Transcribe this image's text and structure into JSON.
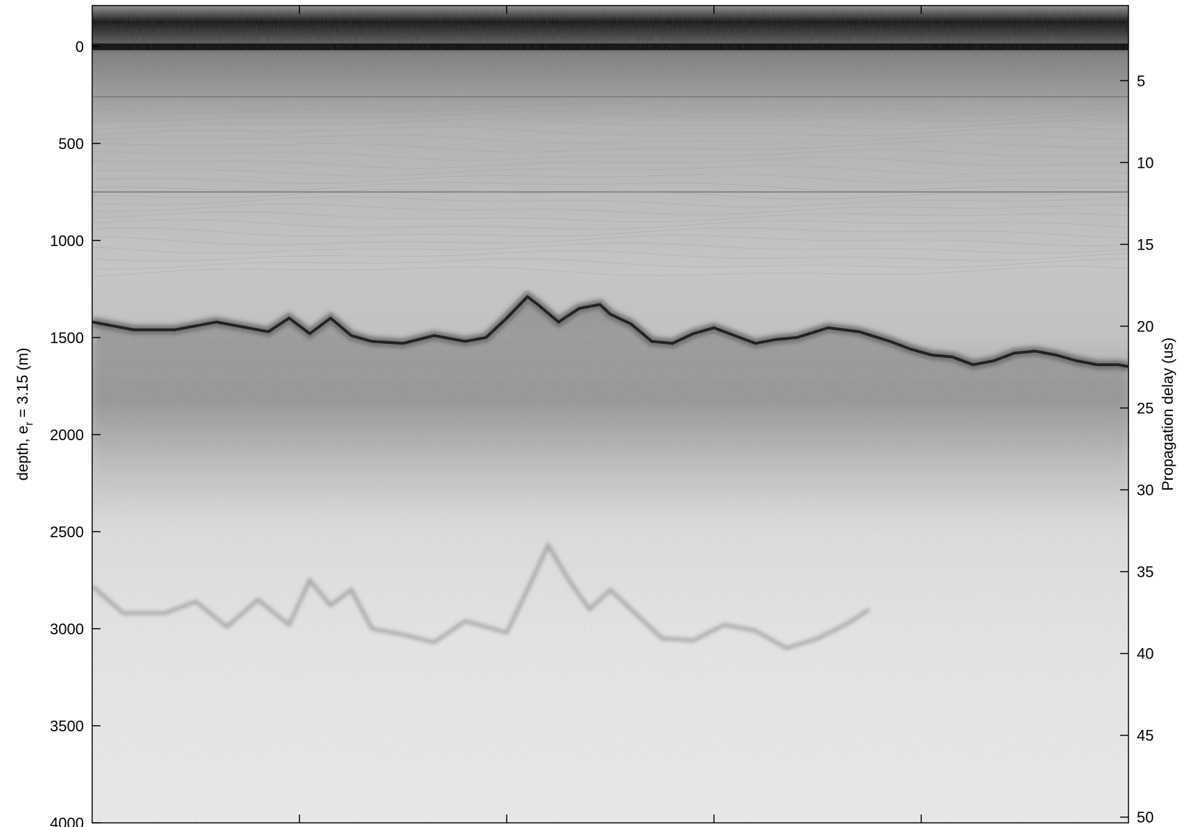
{
  "chart_data": {
    "type": "heatmap",
    "title": "",
    "colormap": "grayscale (dark = strong echo)",
    "left_axis": {
      "label_main": "depth, e",
      "label_sub": "r",
      "label_rest": " = 3.15 (m)",
      "ylim": [
        -210,
        4000
      ],
      "ticks": [
        0,
        500,
        1000,
        1500,
        2000,
        2500,
        3000,
        3500,
        4000
      ],
      "tick_labels": [
        "0",
        "500",
        "1000",
        "1500",
        "2000",
        "2500",
        "3000",
        "3500",
        "4000"
      ]
    },
    "right_axis": {
      "label": "Propagation delay (us)",
      "ticks": [
        5,
        10,
        15,
        20,
        25,
        30,
        35,
        40,
        45,
        50
      ],
      "tick_labels": [
        "5",
        "10",
        "15",
        "20",
        "25",
        "30",
        "35",
        "40",
        "45",
        "50"
      ]
    },
    "x_axis": {
      "tick_count": 4,
      "tick_labels": [],
      "label": ""
    },
    "grid": false,
    "features": {
      "surface_reflection_depth": 0,
      "internal_layers_depth": [
        260,
        750
      ],
      "bed_reflection": {
        "x_fraction": [
          0.0,
          0.04,
          0.08,
          0.12,
          0.17,
          0.19,
          0.21,
          0.23,
          0.25,
          0.27,
          0.3,
          0.33,
          0.36,
          0.38,
          0.4,
          0.42,
          0.43,
          0.45,
          0.47,
          0.49,
          0.5,
          0.52,
          0.54,
          0.56,
          0.58,
          0.6,
          0.62,
          0.64,
          0.66,
          0.68,
          0.71,
          0.74,
          0.77,
          0.79,
          0.81,
          0.83,
          0.85,
          0.87,
          0.89,
          0.91,
          0.93,
          0.95,
          0.97,
          0.99,
          1.0
        ],
        "depth_m": [
          1420,
          1460,
          1460,
          1420,
          1470,
          1400,
          1480,
          1400,
          1490,
          1520,
          1530,
          1490,
          1520,
          1500,
          1400,
          1290,
          1330,
          1420,
          1350,
          1330,
          1380,
          1430,
          1520,
          1530,
          1480,
          1450,
          1490,
          1530,
          1510,
          1500,
          1450,
          1470,
          1520,
          1560,
          1590,
          1600,
          1640,
          1620,
          1580,
          1570,
          1590,
          1620,
          1640,
          1640,
          1650
        ]
      },
      "multiple_reflection": {
        "x_fraction": [
          0.0,
          0.03,
          0.07,
          0.1,
          0.13,
          0.16,
          0.19,
          0.21,
          0.23,
          0.25,
          0.27,
          0.3,
          0.33,
          0.36,
          0.4,
          0.42,
          0.44,
          0.46,
          0.48,
          0.5,
          0.52,
          0.55,
          0.58,
          0.61,
          0.64,
          0.67,
          0.7,
          0.73,
          0.75
        ],
        "depth_m": [
          2780,
          2920,
          2920,
          2860,
          2990,
          2850,
          2980,
          2750,
          2880,
          2800,
          3000,
          3030,
          3070,
          2960,
          3020,
          2800,
          2570,
          2750,
          2900,
          2800,
          2900,
          3050,
          3060,
          2980,
          3010,
          3100,
          3050,
          2970,
          2900
        ]
      }
    }
  }
}
